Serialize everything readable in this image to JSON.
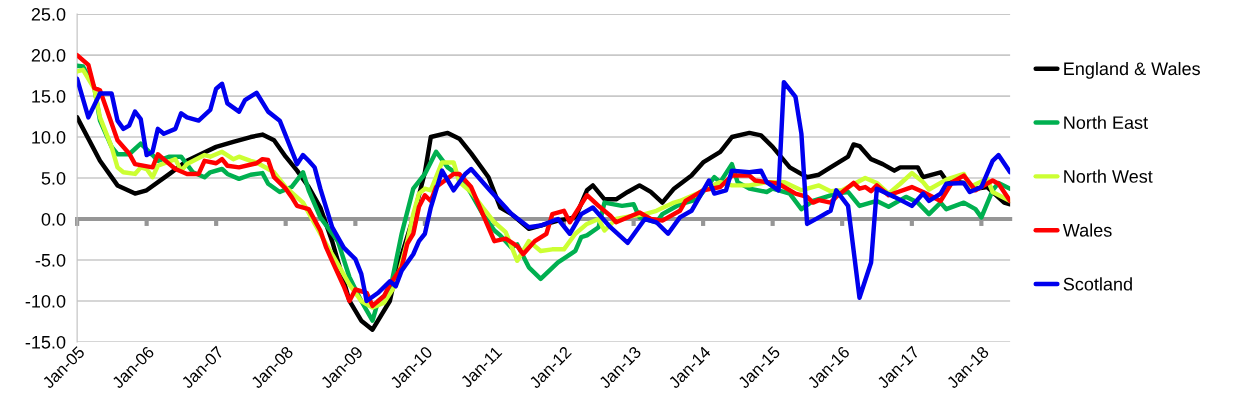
{
  "chart_data": {
    "type": "line",
    "ylim": [
      -15,
      25
    ],
    "yticks": [
      {
        "value": -15,
        "label": "-15.0"
      },
      {
        "value": -10,
        "label": "-10.0"
      },
      {
        "value": -5,
        "label": "-5.0"
      },
      {
        "value": 0,
        "label": "0.0"
      },
      {
        "value": 5,
        "label": "5.0"
      },
      {
        "value": 10,
        "label": "10.0"
      },
      {
        "value": 15,
        "label": "15.0"
      },
      {
        "value": 20,
        "label": "20.0"
      },
      {
        "value": 25,
        "label": "25.0"
      }
    ],
    "xlim": [
      "2005-01",
      "2018-06"
    ],
    "xticks": [
      {
        "value": "2005-01",
        "label": "Jan-05"
      },
      {
        "value": "2006-01",
        "label": "Jan-06"
      },
      {
        "value": "2007-01",
        "label": "Jan-07"
      },
      {
        "value": "2008-01",
        "label": "Jan-08"
      },
      {
        "value": "2009-01",
        "label": "Jan-09"
      },
      {
        "value": "2010-01",
        "label": "Jan-10"
      },
      {
        "value": "2011-01",
        "label": "Jan-11"
      },
      {
        "value": "2012-01",
        "label": "Jan-12"
      },
      {
        "value": "2013-01",
        "label": "Jan-13"
      },
      {
        "value": "2014-01",
        "label": "Jan-14"
      },
      {
        "value": "2015-01",
        "label": "Jan-15"
      },
      {
        "value": "2016-01",
        "label": "Jan-16"
      },
      {
        "value": "2017-01",
        "label": "Jan-17"
      },
      {
        "value": "2018-01",
        "label": "Jan-18"
      }
    ],
    "grid": "y",
    "legend": "right",
    "marker": "none",
    "line_style": "solid",
    "series": [
      {
        "name": "England & Wales",
        "color": "#000000",
        "x": [
          "2005-01",
          "2005-05",
          "2005-08",
          "2005-11",
          "2006-01",
          "2006-05",
          "2006-08",
          "2007-01",
          "2007-04",
          "2007-07",
          "2007-09",
          "2007-11",
          "2008-01",
          "2008-03",
          "2008-05",
          "2008-07",
          "2008-09",
          "2008-12",
          "2009-02",
          "2009-04",
          "2009-07",
          "2009-08",
          "2009-11",
          "2010-01",
          "2010-02",
          "2010-05",
          "2010-07",
          "2010-09",
          "2010-12",
          "2011-02",
          "2011-04",
          "2011-07",
          "2011-09",
          "2011-12",
          "2012-03",
          "2012-05",
          "2012-06",
          "2012-08",
          "2012-10",
          "2012-12",
          "2013-02",
          "2013-04",
          "2013-06",
          "2013-08",
          "2013-11",
          "2014-01",
          "2014-04",
          "2014-06",
          "2014-09",
          "2014-11",
          "2015-01",
          "2015-04",
          "2015-07",
          "2015-09",
          "2015-11",
          "2016-02",
          "2016-03",
          "2016-04",
          "2016-06",
          "2016-08",
          "2016-10",
          "2016-11",
          "2017-02",
          "2017-03",
          "2017-06",
          "2017-07",
          "2017-10",
          "2017-12",
          "2018-02",
          "2018-05",
          "2018-06"
        ],
        "values": [
          12.4,
          7.1,
          4.1,
          3.1,
          3.5,
          5.5,
          7.1,
          8.8,
          9.4,
          10.0,
          10.3,
          9.6,
          7.6,
          5.9,
          3.9,
          1.4,
          -2.7,
          -10.0,
          -12.4,
          -13.5,
          -10.0,
          -6.7,
          0.2,
          5.7,
          10.0,
          10.5,
          9.8,
          8.0,
          5.1,
          1.4,
          0.6,
          -1.2,
          -0.8,
          -0.2,
          0.2,
          3.5,
          4.1,
          2.4,
          2.4,
          3.3,
          4.1,
          3.3,
          2.0,
          3.7,
          5.3,
          6.9,
          8.2,
          10.0,
          10.5,
          10.2,
          8.8,
          6.3,
          5.1,
          5.4,
          6.3,
          7.6,
          9.1,
          8.9,
          7.3,
          6.7,
          5.9,
          6.3,
          6.3,
          5.1,
          5.7,
          4.7,
          4.4,
          3.7,
          3.9,
          2.0,
          1.8
        ]
      },
      {
        "name": "North East",
        "color": "#00b050",
        "x": [
          "2005-01",
          "2005-02",
          "2005-04",
          "2005-05",
          "2005-07",
          "2005-08",
          "2005-10",
          "2005-12",
          "2006-02",
          "2006-03",
          "2006-05",
          "2006-07",
          "2006-09",
          "2006-11",
          "2006-12",
          "2007-02",
          "2007-03",
          "2007-05",
          "2007-07",
          "2007-09",
          "2007-10",
          "2007-12",
          "2008-02",
          "2008-04",
          "2008-05",
          "2008-07",
          "2008-10",
          "2008-12",
          "2009-02",
          "2009-04",
          "2009-05",
          "2009-07",
          "2009-09",
          "2009-11",
          "2010-01",
          "2010-03",
          "2010-05",
          "2010-07",
          "2010-09",
          "2010-11",
          "2011-01",
          "2011-02",
          "2011-04",
          "2011-05",
          "2011-07",
          "2011-09",
          "2011-12",
          "2012-03",
          "2012-04",
          "2012-05",
          "2012-07",
          "2012-08",
          "2012-11",
          "2013-01",
          "2013-02",
          "2013-05",
          "2013-06",
          "2013-09",
          "2013-12",
          "2014-03",
          "2014-04",
          "2014-06",
          "2014-07",
          "2014-09",
          "2014-12",
          "2015-01",
          "2015-04",
          "2015-06",
          "2015-08",
          "2015-12",
          "2016-02",
          "2016-04",
          "2016-07",
          "2016-09",
          "2016-12",
          "2017-02",
          "2017-04",
          "2017-06",
          "2017-07",
          "2017-10",
          "2017-12",
          "2018-01",
          "2018-03",
          "2018-04",
          "2018-06"
        ],
        "values": [
          18.7,
          18.6,
          16.1,
          12.0,
          8.8,
          7.9,
          7.9,
          9.2,
          7.8,
          7.1,
          7.6,
          7.6,
          5.7,
          5.1,
          5.7,
          6.1,
          5.5,
          4.9,
          5.4,
          5.6,
          4.3,
          3.3,
          3.9,
          5.7,
          3.5,
          0.2,
          -2.7,
          -7.1,
          -10.0,
          -12.4,
          -10.0,
          -8.8,
          -1.8,
          3.7,
          5.5,
          8.2,
          6.3,
          5.3,
          3.1,
          0.6,
          -1.4,
          -2.0,
          -3.5,
          -3.1,
          -5.9,
          -7.3,
          -5.3,
          -3.9,
          -2.2,
          -2.0,
          -1.0,
          2.0,
          1.6,
          1.8,
          0.2,
          -0.4,
          0.6,
          1.8,
          2.4,
          5.1,
          4.5,
          6.7,
          4.5,
          3.7,
          3.3,
          3.7,
          3.1,
          1.2,
          2.2,
          3.1,
          3.3,
          1.6,
          2.2,
          1.5,
          2.7,
          2.0,
          0.6,
          2.0,
          1.2,
          2.0,
          1.2,
          0.2,
          3.5,
          4.4,
          3.7
        ]
      },
      {
        "name": "North West",
        "color": "#ccff33",
        "x": [
          "2005-01",
          "2005-02",
          "2005-04",
          "2005-05",
          "2005-07",
          "2005-08",
          "2005-09",
          "2005-11",
          "2005-12",
          "2006-01",
          "2006-02",
          "2006-03",
          "2006-06",
          "2006-07",
          "2006-08",
          "2006-11",
          "2006-12",
          "2007-02",
          "2007-04",
          "2007-05",
          "2007-07",
          "2007-08",
          "2007-09",
          "2007-11",
          "2008-01",
          "2008-04",
          "2008-07",
          "2008-09",
          "2008-12",
          "2009-02",
          "2009-04",
          "2009-06",
          "2009-08",
          "2009-10",
          "2009-11",
          "2009-12",
          "2010-01",
          "2010-02",
          "2010-04",
          "2010-06",
          "2010-07",
          "2010-09",
          "2010-11",
          "2011-01",
          "2011-03",
          "2011-05",
          "2011-07",
          "2011-09",
          "2011-11",
          "2012-01",
          "2012-03",
          "2012-05",
          "2012-07",
          "2012-08",
          "2012-10",
          "2013-01",
          "2013-03",
          "2013-05",
          "2013-08",
          "2013-09",
          "2013-12",
          "2014-02",
          "2014-04",
          "2014-06",
          "2014-09",
          "2014-12",
          "2015-03",
          "2015-06",
          "2015-07",
          "2015-09",
          "2015-11",
          "2016-01",
          "2016-05",
          "2016-07",
          "2016-09",
          "2016-11",
          "2017-01",
          "2017-03",
          "2017-04",
          "2017-07",
          "2017-10",
          "2017-11",
          "2018-02",
          "2018-03",
          "2018-06"
        ],
        "values": [
          18.0,
          18.2,
          15.9,
          12.4,
          8.8,
          6.3,
          5.7,
          5.5,
          6.3,
          6.1,
          5.1,
          6.5,
          7.3,
          5.9,
          6.7,
          7.8,
          7.6,
          8.2,
          7.3,
          7.6,
          7.1,
          6.9,
          6.5,
          5.7,
          3.9,
          2.0,
          -1.8,
          -4.3,
          -8.0,
          -10.0,
          -10.8,
          -10.2,
          -8.0,
          -2.7,
          0.6,
          3.1,
          3.7,
          3.5,
          6.9,
          6.9,
          4.5,
          3.3,
          1.4,
          -0.4,
          -1.6,
          -5.1,
          -2.7,
          -3.9,
          -3.7,
          -3.7,
          -1.8,
          -0.6,
          0.0,
          -1.4,
          0.0,
          0.4,
          0.6,
          1.0,
          2.0,
          2.2,
          3.1,
          3.9,
          4.5,
          4.1,
          4.1,
          4.5,
          4.5,
          3.5,
          3.7,
          4.1,
          3.4,
          3.5,
          5.0,
          4.4,
          3.1,
          4.3,
          5.6,
          4.5,
          3.6,
          4.8,
          5.5,
          3.9,
          4.9,
          3.3,
          2.2
        ]
      },
      {
        "name": "Wales",
        "color": "#ff0000",
        "x": [
          "2005-01",
          "2005-03",
          "2005-04",
          "2005-05",
          "2005-08",
          "2005-10",
          "2005-11",
          "2006-02",
          "2006-03",
          "2006-05",
          "2006-06",
          "2006-08",
          "2006-10",
          "2006-11",
          "2007-01",
          "2007-02",
          "2007-03",
          "2007-05",
          "2007-08",
          "2007-09",
          "2007-10",
          "2007-11",
          "2008-01",
          "2008-02",
          "2008-03",
          "2008-05",
          "2008-07",
          "2008-08",
          "2008-09",
          "2008-11",
          "2008-12",
          "2009-01",
          "2009-03",
          "2009-04",
          "2009-06",
          "2009-07",
          "2009-09",
          "2009-10",
          "2009-11",
          "2009-12",
          "2010-01",
          "2010-02",
          "2010-03",
          "2010-06",
          "2010-07",
          "2010-09",
          "2010-11",
          "2011-01",
          "2011-03",
          "2011-05",
          "2011-06",
          "2011-08",
          "2011-10",
          "2011-11",
          "2012-01",
          "2012-02",
          "2012-05",
          "2012-07",
          "2012-09",
          "2012-10",
          "2013-02",
          "2013-04",
          "2013-06",
          "2013-09",
          "2013-10",
          "2014-01",
          "2014-04",
          "2014-06",
          "2014-09",
          "2014-10",
          "2015-02",
          "2015-05",
          "2015-07",
          "2015-08",
          "2015-09",
          "2015-11",
          "2015-12",
          "2016-03",
          "2016-04",
          "2016-05",
          "2016-06",
          "2016-07",
          "2016-09",
          "2017-01",
          "2017-03",
          "2017-06",
          "2017-08",
          "2017-10",
          "2017-12",
          "2018-03",
          "2018-04",
          "2018-06"
        ],
        "values": [
          20.0,
          18.8,
          16.0,
          15.7,
          9.6,
          8.0,
          6.7,
          6.3,
          7.9,
          6.7,
          6.1,
          5.5,
          5.5,
          7.1,
          6.8,
          7.3,
          6.5,
          6.3,
          6.8,
          7.3,
          7.2,
          5.1,
          3.7,
          2.7,
          1.6,
          1.2,
          -1.4,
          -3.5,
          -5.1,
          -8.2,
          -10.0,
          -8.6,
          -9.0,
          -10.6,
          -9.4,
          -8.0,
          -5.9,
          -3.0,
          -1.8,
          1.5,
          2.9,
          2.2,
          3.9,
          5.5,
          5.5,
          3.9,
          0.6,
          -2.7,
          -2.4,
          -3.3,
          -4.3,
          -2.7,
          -1.8,
          0.6,
          1.0,
          -0.4,
          2.9,
          1.6,
          0.4,
          -0.4,
          0.8,
          0.0,
          -0.2,
          1.0,
          2.2,
          3.5,
          3.9,
          5.3,
          5.3,
          4.7,
          4.3,
          3.1,
          2.7,
          2.0,
          2.3,
          2.0,
          2.7,
          4.4,
          3.7,
          3.9,
          3.4,
          4.1,
          2.9,
          3.9,
          3.3,
          2.2,
          4.5,
          5.3,
          3.5,
          4.7,
          4.3,
          2.2
        ]
      },
      {
        "name": "Scotland",
        "color": "#0000ee",
        "x": [
          "2005-01",
          "2005-03",
          "2005-05",
          "2005-07",
          "2005-08",
          "2005-09",
          "2005-10",
          "2005-11",
          "2005-12",
          "2006-01",
          "2006-02",
          "2006-03",
          "2006-04",
          "2006-06",
          "2006-07",
          "2006-08",
          "2006-10",
          "2006-12",
          "2007-01",
          "2007-02",
          "2007-03",
          "2007-05",
          "2007-06",
          "2007-08",
          "2007-10",
          "2007-12",
          "2008-03",
          "2008-04",
          "2008-05",
          "2008-06",
          "2008-07",
          "2008-09",
          "2008-11",
          "2009-01",
          "2009-02",
          "2009-03",
          "2009-05",
          "2009-07",
          "2009-08",
          "2009-09",
          "2009-11",
          "2009-12",
          "2010-01",
          "2010-02",
          "2010-04",
          "2010-06",
          "2010-08",
          "2010-09",
          "2010-12",
          "2011-01",
          "2011-04",
          "2011-07",
          "2011-09",
          "2011-12",
          "2012-02",
          "2012-04",
          "2012-06",
          "2012-09",
          "2012-12",
          "2013-03",
          "2013-05",
          "2013-07",
          "2013-09",
          "2013-11",
          "2014-02",
          "2014-03",
          "2014-05",
          "2014-06",
          "2014-09",
          "2014-11",
          "2014-12",
          "2015-02",
          "2015-03",
          "2015-05",
          "2015-06",
          "2015-07",
          "2015-09",
          "2015-11",
          "2015-12",
          "2016-02",
          "2016-04",
          "2016-06",
          "2016-07",
          "2016-10",
          "2017-01",
          "2017-03",
          "2017-04",
          "2017-06",
          "2017-07",
          "2017-10",
          "2017-11",
          "2018-01",
          "2018-03",
          "2018-04",
          "2018-06"
        ],
        "values": [
          17.1,
          12.4,
          15.3,
          15.3,
          12.0,
          11.0,
          11.4,
          13.1,
          12.2,
          7.8,
          8.2,
          11.0,
          10.4,
          11.0,
          12.9,
          12.4,
          12.0,
          13.3,
          15.9,
          16.5,
          14.1,
          13.1,
          14.5,
          15.4,
          13.1,
          12.0,
          6.7,
          7.8,
          7.1,
          6.3,
          3.7,
          -1.0,
          -3.5,
          -4.9,
          -6.7,
          -10.0,
          -9.0,
          -7.6,
          -8.2,
          -6.3,
          -4.3,
          -2.7,
          -1.8,
          1.4,
          5.9,
          3.5,
          5.5,
          6.1,
          3.7,
          2.9,
          0.6,
          -1.0,
          -0.8,
          0.0,
          -1.8,
          0.6,
          1.4,
          -1.0,
          -2.9,
          0.0,
          -0.4,
          -1.8,
          0.2,
          1.0,
          4.7,
          3.1,
          3.5,
          5.9,
          5.7,
          5.9,
          4.5,
          3.5,
          16.7,
          14.9,
          10.4,
          -0.6,
          0.2,
          1.0,
          3.5,
          1.6,
          -9.6,
          -5.3,
          3.7,
          2.7,
          1.6,
          3.1,
          2.2,
          3.1,
          4.3,
          4.4,
          3.3,
          3.9,
          7.1,
          7.8,
          5.7
        ]
      }
    ]
  }
}
